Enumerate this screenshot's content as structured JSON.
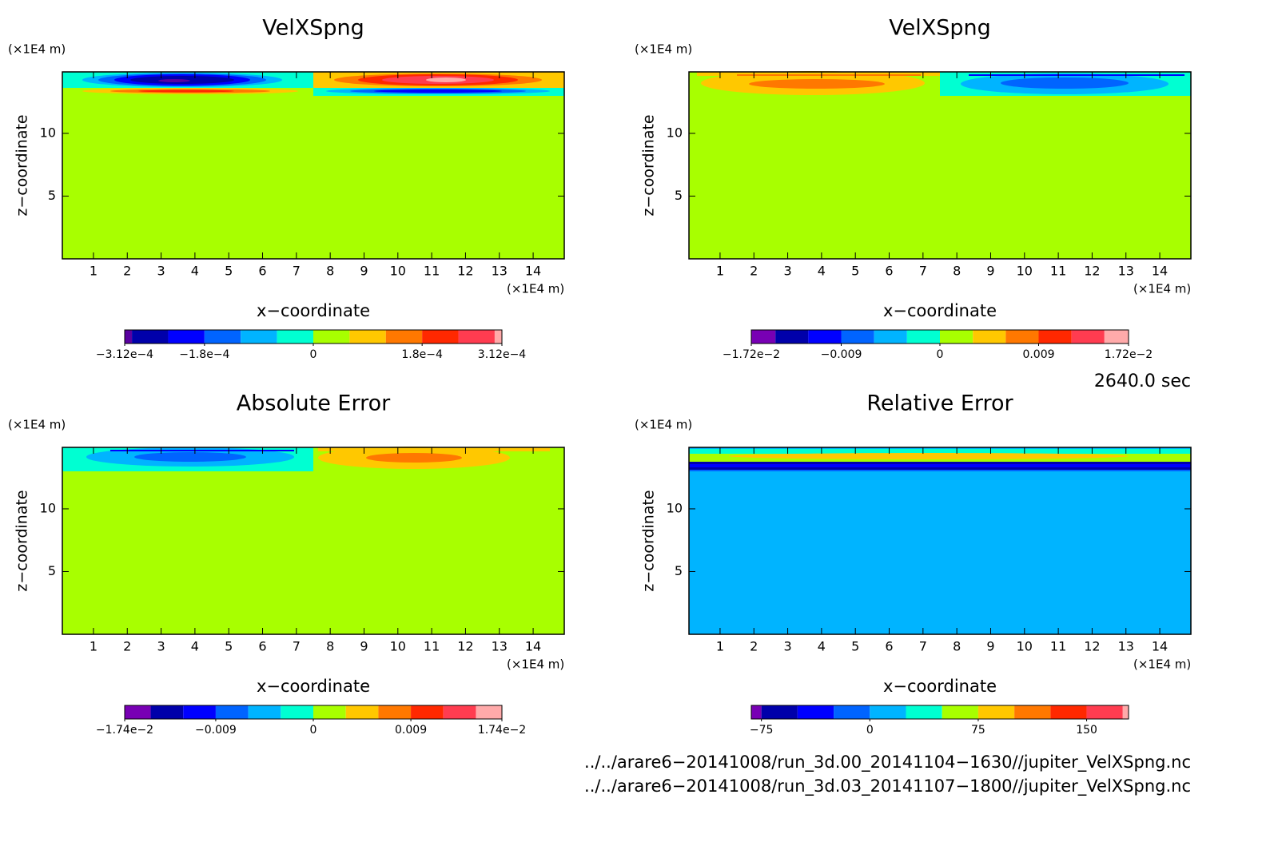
{
  "chart_data": [
    {
      "type": "contour",
      "title": "VelXSpng",
      "x_label": "x−coordinate",
      "y_label": "z−coordinate",
      "x_unit": "(×1E4 m)",
      "y_unit": "(×1E4 m)",
      "background": "#a8ff00",
      "xlim": [
        0.08,
        14.92
      ],
      "ylim": [
        0,
        14.9
      ],
      "xticks": [
        1,
        2,
        3,
        4,
        5,
        6,
        7,
        8,
        9,
        10,
        11,
        12,
        13,
        14
      ],
      "yticks": [
        5,
        10
      ],
      "colorbar": {
        "levels": [
          -0.000312,
          -0.0003,
          -0.00024,
          -0.00018,
          -0.00012,
          -6e-05,
          0,
          6e-05,
          0.00012,
          0.00018,
          0.00024,
          0.0003,
          0.000312
        ],
        "colors": [
          "#5a00a0",
          "#0000aa",
          "#0000ff",
          "#0064ff",
          "#00b4ff",
          "#00ffd2",
          "#a8ff00",
          "#ffc800",
          "#ff7800",
          "#ff2800",
          "#ff3c50",
          "#ffaaaa"
        ],
        "ticks": [
          {
            "value": -0.000312,
            "label": "−3.12e−4"
          },
          {
            "value": -0.00018,
            "label": "−1.8e−4"
          },
          0,
          {
            "value": 0.00018,
            "label": "1.8e−4"
          },
          {
            "value": 0.000312,
            "label": "3.12e−4"
          }
        ]
      }
    },
    {
      "type": "contour",
      "title": "VelXSpng",
      "x_label": "x−coordinate",
      "y_label": "z−coordinate",
      "x_unit": "(×1E4 m)",
      "y_unit": "(×1E4 m)",
      "background": "#a8ff00",
      "xlim": [
        0.08,
        14.92
      ],
      "ylim": [
        0,
        14.9
      ],
      "xticks": [
        1,
        2,
        3,
        4,
        5,
        6,
        7,
        8,
        9,
        10,
        11,
        12,
        13,
        14
      ],
      "yticks": [
        5,
        10
      ],
      "colorbar": {
        "levels": [
          -0.0172,
          -0.015,
          -0.012,
          -0.009,
          -0.006,
          -0.003,
          0,
          0.003,
          0.006,
          0.009,
          0.012,
          0.015,
          0.0172
        ],
        "colors": [
          "#7800b4",
          "#0000aa",
          "#0000ff",
          "#0064ff",
          "#00b4ff",
          "#00ffd2",
          "#a8ff00",
          "#ffc800",
          "#ff7800",
          "#ff2800",
          "#ff3c50",
          "#ffaaaa"
        ],
        "ticks": [
          {
            "value": -0.0172,
            "label": "−1.72e−2"
          },
          {
            "value": -0.009,
            "label": "−0.009"
          },
          0,
          0.009,
          {
            "value": 0.0172,
            "label": "1.72e−2"
          }
        ]
      }
    },
    {
      "type": "contour",
      "title": "Absolute Error",
      "x_label": "x−coordinate",
      "y_label": "z−coordinate",
      "x_unit": "(×1E4 m)",
      "y_unit": "(×1E4 m)",
      "background": "#a8ff00",
      "xlim": [
        0.08,
        14.92
      ],
      "ylim": [
        0,
        14.9
      ],
      "xticks": [
        1,
        2,
        3,
        4,
        5,
        6,
        7,
        8,
        9,
        10,
        11,
        12,
        13,
        14
      ],
      "yticks": [
        5,
        10
      ],
      "colorbar": {
        "levels": [
          -0.0174,
          -0.015,
          -0.012,
          -0.009,
          -0.006,
          -0.003,
          0,
          0.003,
          0.006,
          0.009,
          0.012,
          0.015,
          0.0174
        ],
        "colors": [
          "#7800b4",
          "#0000aa",
          "#0000ff",
          "#0064ff",
          "#00b4ff",
          "#00ffd2",
          "#a8ff00",
          "#ffc800",
          "#ff7800",
          "#ff2800",
          "#ff3c50",
          "#ffaaaa"
        ],
        "ticks": [
          {
            "value": -0.0174,
            "label": "−1.74e−2"
          },
          {
            "value": -0.009,
            "label": "−0.009"
          },
          0,
          0.009,
          {
            "value": 0.0174,
            "label": "1.74e−2"
          }
        ]
      }
    },
    {
      "type": "contour",
      "title": "Relative Error",
      "x_label": "x−coordinate",
      "y_label": "z−coordinate",
      "x_unit": "(×1E4 m)",
      "y_unit": "(×1E4 m)",
      "background": "#00b4ff",
      "xlim": [
        0.08,
        14.92
      ],
      "ylim": [
        0,
        14.9
      ],
      "xticks": [
        1,
        2,
        3,
        4,
        5,
        6,
        7,
        8,
        9,
        10,
        11,
        12,
        13,
        14
      ],
      "yticks": [
        5,
        10
      ],
      "colorbar": {
        "levels": [
          -82,
          -75,
          -50,
          -25,
          0,
          25,
          50,
          75,
          100,
          125,
          150,
          175,
          179
        ],
        "colors": [
          "#7800b4",
          "#0000aa",
          "#0000ff",
          "#0064ff",
          "#00b4ff",
          "#00ffd2",
          "#a8ff00",
          "#ffc800",
          "#ff7800",
          "#ff2800",
          "#ff3c50",
          "#ffaaaa"
        ],
        "ticks": [
          {
            "value": -75,
            "label": "−75"
          },
          0,
          75,
          150
        ]
      }
    }
  ],
  "footer": {
    "time": "2640.0 sec",
    "files": [
      "../../arare6−20141008/run_3d.00_20141104−1630//jupiter_VelXSpng.nc",
      "../../arare6−20141008/run_3d.03_20141107−1800//jupiter_VelXSpng.nc"
    ]
  }
}
